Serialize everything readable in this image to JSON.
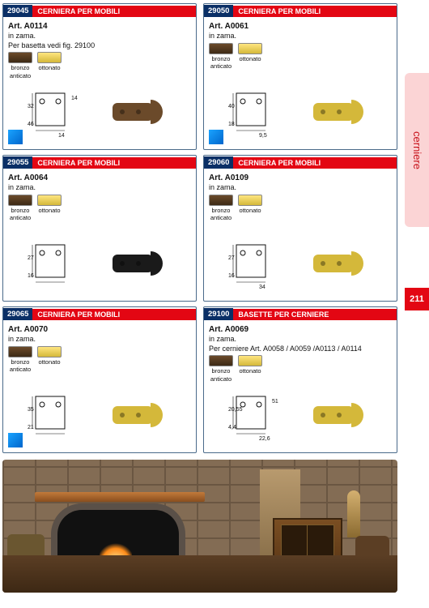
{
  "side_label": "cerniere",
  "page_number": "211",
  "swatch_styles": {
    "bronze": {
      "label": "bronzo\nanticato",
      "gradient": [
        "#6b4a2a",
        "#3d2a16"
      ]
    },
    "gold": {
      "label": "ottonato",
      "gradient": [
        "#ffe680",
        "#d4b83a"
      ]
    }
  },
  "brand_colors": {
    "red": "#e30613",
    "navy": "#0a2f66"
  },
  "cells": [
    {
      "code": "29045",
      "title": "CERNIERA PER MOBILI",
      "art": "Art. A0114",
      "mat": "in zama.",
      "note": "Per basetta vedi fig. 29100",
      "dims": [
        "32",
        "46",
        "14",
        "14"
      ],
      "blue_square": true,
      "product_color": "#6b4a2a"
    },
    {
      "code": "29050",
      "title": "CERNIERA PER MOBILI",
      "art": "Art. A0061",
      "mat": "in zama.",
      "note": "",
      "dims": [
        "40",
        "18",
        "9,5"
      ],
      "blue_square": true,
      "product_color": "#d4b83a"
    },
    {
      "code": "29055",
      "title": "CERNIERA PER MOBILI",
      "art": "Art. A0064",
      "mat": "in zama.",
      "note": "",
      "dims": [
        "27",
        "16"
      ],
      "blue_square": false,
      "product_color": "#1a1a1a"
    },
    {
      "code": "29060",
      "title": "CERNIERA PER MOBILI",
      "art": "Art. A0109",
      "mat": "in zama.",
      "note": "",
      "dims": [
        "27",
        "16",
        "34"
      ],
      "blue_square": false,
      "product_color": "#d4b83a"
    },
    {
      "code": "29065",
      "title": "CERNIERA PER MOBILI",
      "art": "Art. A0070",
      "mat": "in zama.",
      "note": "",
      "dims": [
        "35",
        "21"
      ],
      "blue_square": true,
      "product_color": "#d4b83a"
    },
    {
      "code": "29100",
      "title": "BASETTE PER CERNIERE",
      "art": "Art. A0069",
      "mat": "in zama.",
      "note": "Per cerniere Art.  A0058 / A0059 /A0113 / A0114",
      "dims": [
        "20,55",
        "4,4",
        "22,6",
        "51,65"
      ],
      "blue_square": false,
      "product_color": "#d4b83a"
    }
  ]
}
